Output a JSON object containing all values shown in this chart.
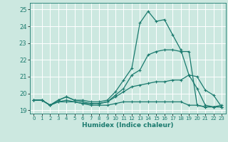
{
  "xlabel": "Humidex (Indice chaleur)",
  "background_color": "#cce8e0",
  "grid_color": "#ffffff",
  "line_color": "#1a7a6e",
  "xlim": [
    -0.5,
    23.5
  ],
  "ylim": [
    18.8,
    25.4
  ],
  "yticks": [
    19,
    20,
    21,
    22,
    23,
    24,
    25
  ],
  "xticks": [
    0,
    1,
    2,
    3,
    4,
    5,
    6,
    7,
    8,
    9,
    10,
    11,
    12,
    13,
    14,
    15,
    16,
    17,
    18,
    19,
    20,
    21,
    22,
    23
  ],
  "series": [
    {
      "x": [
        0,
        1,
        2,
        3,
        4,
        5,
        6,
        7,
        8,
        9,
        10,
        11,
        12,
        13,
        14,
        15,
        16,
        17,
        18,
        19,
        20,
        21,
        22,
        23
      ],
      "y": [
        19.6,
        19.6,
        19.3,
        19.6,
        19.8,
        19.6,
        19.6,
        19.5,
        19.5,
        19.6,
        20.1,
        20.8,
        21.5,
        24.2,
        24.9,
        24.3,
        24.4,
        23.5,
        22.6,
        21.1,
        20.3,
        19.3,
        19.2,
        19.3
      ]
    },
    {
      "x": [
        0,
        1,
        2,
        3,
        4,
        5,
        6,
        7,
        8,
        9,
        10,
        11,
        12,
        13,
        14,
        15,
        16,
        17,
        18,
        19,
        20,
        21,
        22,
        23
      ],
      "y": [
        19.6,
        19.6,
        19.3,
        19.6,
        19.8,
        19.6,
        19.5,
        19.4,
        19.4,
        19.5,
        19.9,
        20.3,
        21.1,
        21.4,
        22.3,
        22.5,
        22.6,
        22.6,
        22.5,
        22.5,
        19.3,
        19.2,
        19.2,
        19.2
      ]
    },
    {
      "x": [
        0,
        1,
        2,
        3,
        4,
        5,
        6,
        7,
        8,
        9,
        10,
        11,
        12,
        13,
        14,
        15,
        16,
        17,
        18,
        19,
        20,
        21,
        22,
        23
      ],
      "y": [
        19.6,
        19.6,
        19.3,
        19.5,
        19.6,
        19.5,
        19.4,
        19.4,
        19.4,
        19.5,
        19.8,
        20.1,
        20.4,
        20.5,
        20.6,
        20.7,
        20.7,
        20.8,
        20.8,
        21.1,
        21.0,
        20.2,
        19.9,
        19.2
      ]
    },
    {
      "x": [
        0,
        1,
        2,
        3,
        4,
        5,
        6,
        7,
        8,
        9,
        10,
        11,
        12,
        13,
        14,
        15,
        16,
        17,
        18,
        19,
        20,
        21,
        22,
        23
      ],
      "y": [
        19.6,
        19.6,
        19.3,
        19.5,
        19.5,
        19.5,
        19.4,
        19.3,
        19.3,
        19.3,
        19.4,
        19.5,
        19.5,
        19.5,
        19.5,
        19.5,
        19.5,
        19.5,
        19.5,
        19.3,
        19.3,
        19.2,
        19.2,
        19.2
      ]
    }
  ]
}
